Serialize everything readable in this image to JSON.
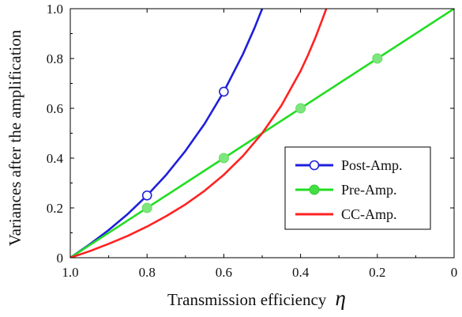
{
  "chart_data": {
    "type": "line",
    "xlabel": "Transmission efficiency",
    "xlabel_symbol": "η",
    "ylabel": "Variances after the amplification",
    "xlim": [
      1.0,
      0
    ],
    "ylim": [
      0,
      1.0
    ],
    "x_reversed": true,
    "x_ticks": [
      1.0,
      0.8,
      0.6,
      0.4,
      0.2,
      0
    ],
    "x_tick_labels": [
      "1.0",
      "0.8",
      "0.6",
      "0.4",
      "0.2",
      "0"
    ],
    "y_ticks": [
      0,
      0.2,
      0.4,
      0.6,
      0.8,
      1.0
    ],
    "y_tick_labels": [
      "0",
      "0.2",
      "0.4",
      "0.6",
      "0.8",
      "1.0"
    ],
    "grid": false,
    "legend_position": "bottom-right",
    "series": [
      {
        "name": "Post-Amp.",
        "color": "#1f1fdc",
        "marker": "open-circle",
        "x": [
          1.0,
          0.95,
          0.9,
          0.85,
          0.8,
          0.75,
          0.7,
          0.65,
          0.6,
          0.55,
          0.52,
          0.5
        ],
        "y": [
          0,
          0.053,
          0.111,
          0.176,
          0.25,
          0.333,
          0.429,
          0.538,
          0.667,
          0.818,
          0.923,
          1.0
        ],
        "marker_points": [
          {
            "x": 0.8,
            "y": 0.25
          },
          {
            "x": 0.6,
            "y": 0.667
          }
        ]
      },
      {
        "name": "Pre-Amp.",
        "color": "#22dd22",
        "marker": "filled-circle",
        "x": [
          1.0,
          0
        ],
        "y": [
          0,
          1.0
        ],
        "marker_points": [
          {
            "x": 0.8,
            "y": 0.2
          },
          {
            "x": 0.6,
            "y": 0.4
          },
          {
            "x": 0.4,
            "y": 0.6
          },
          {
            "x": 0.2,
            "y": 0.8
          }
        ]
      },
      {
        "name": "CC-Amp.",
        "color": "#ff2222",
        "marker": "none",
        "x": [
          1.0,
          0.95,
          0.9,
          0.85,
          0.8,
          0.75,
          0.7,
          0.65,
          0.6,
          0.55,
          0.5,
          0.45,
          0.4,
          0.38,
          0.36,
          0.345,
          0.333
        ],
        "y": [
          0,
          0.026,
          0.056,
          0.088,
          0.125,
          0.167,
          0.214,
          0.269,
          0.333,
          0.409,
          0.5,
          0.611,
          0.75,
          0.816,
          0.889,
          0.95,
          1.0
        ],
        "marker_points": []
      }
    ]
  }
}
